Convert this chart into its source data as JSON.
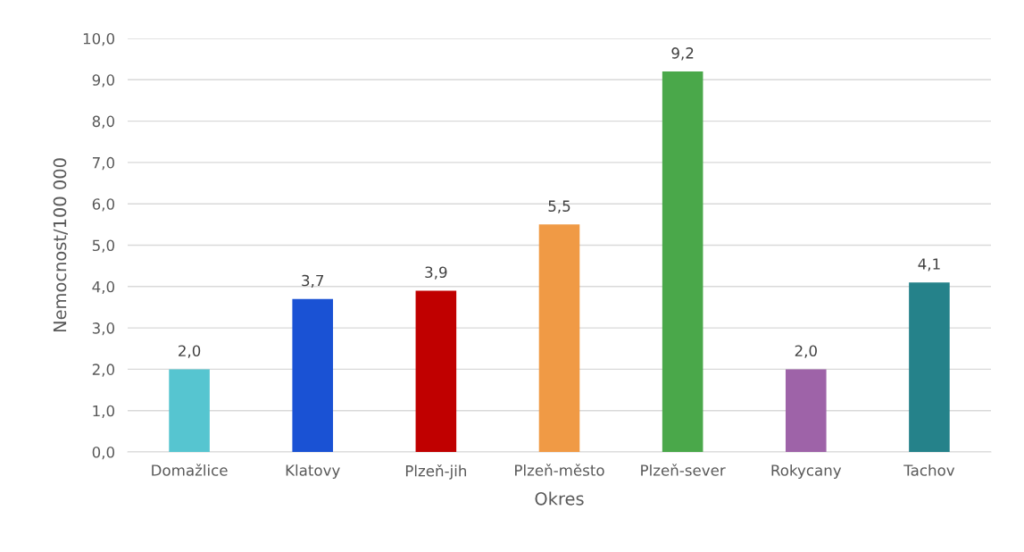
{
  "chart_data": {
    "type": "bar",
    "xlabel": "Okres",
    "ylabel": "Nemocnost/100 000",
    "categories": [
      "Domažlice",
      "Klatovy",
      "Plzeň-jih",
      "Plzeň-město",
      "Plzeň-sever",
      "Rokycany",
      "Tachov"
    ],
    "values": [
      2.0,
      3.7,
      3.9,
      5.5,
      9.2,
      2.0,
      4.1
    ],
    "value_labels": [
      "2,0",
      "3,7",
      "3,9",
      "5,5",
      "9,2",
      "2,0",
      "4,1"
    ],
    "colors": [
      "#56c5d0",
      "#1a52d4",
      "#c00000",
      "#f09a45",
      "#4aa84a",
      "#9e63a8",
      "#25828a"
    ],
    "ylim": [
      0,
      10
    ],
    "yticks": [
      {
        "value": 0,
        "label": "0,0"
      },
      {
        "value": 1,
        "label": "1,0"
      },
      {
        "value": 2,
        "label": "2,0"
      },
      {
        "value": 3,
        "label": "3,0"
      },
      {
        "value": 4,
        "label": "4,0"
      },
      {
        "value": 5,
        "label": "5,0"
      },
      {
        "value": 6,
        "label": "6,0"
      },
      {
        "value": 7,
        "label": "7,0"
      },
      {
        "value": 8,
        "label": "8,0"
      },
      {
        "value": 9,
        "label": "9,0"
      },
      {
        "value": 10,
        "label": "10,0"
      }
    ],
    "grid": "y"
  }
}
